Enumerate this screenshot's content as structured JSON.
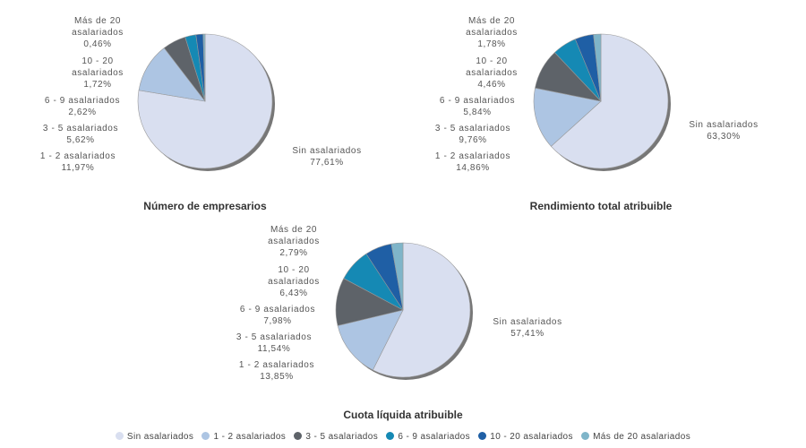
{
  "chart_data": [
    {
      "type": "pie",
      "title": "Número de empresarios",
      "categories": [
        "Sin asalariados",
        "1 - 2 asalariados",
        "3 - 5 asalariados",
        "6 - 9 asalariados",
        "10 - 20 asalariados",
        "Más de 20 asalariados"
      ],
      "values": [
        77.61,
        11.97,
        5.62,
        2.62,
        1.72,
        0.46
      ],
      "labels": [
        "77,61%",
        "11,97%",
        "5,62%",
        "2,62%",
        "1,72%",
        "0,46%"
      ]
    },
    {
      "type": "pie",
      "title": "Rendimiento total atribuible",
      "categories": [
        "Sin asalariados",
        "1 - 2 asalariados",
        "3 - 5 asalariados",
        "6 - 9 asalariados",
        "10 - 20 asalariados",
        "Más de 20 asalariados"
      ],
      "values": [
        63.3,
        14.86,
        9.76,
        5.84,
        4.46,
        1.78
      ],
      "labels": [
        "63,30%",
        "14,86%",
        "9,76%",
        "5,84%",
        "4,46%",
        "1,78%"
      ]
    },
    {
      "type": "pie",
      "title": "Cuota líquida atribuible",
      "categories": [
        "Sin asalariados",
        "1 - 2 asalariados",
        "3 - 5 asalariados",
        "6 - 9 asalariados",
        "10 - 20 asalariados",
        "Más de 20 asalariados"
      ],
      "values": [
        57.41,
        13.85,
        11.54,
        7.98,
        6.43,
        2.79
      ],
      "labels": [
        "57,41%",
        "13,85%",
        "11,54%",
        "7,98%",
        "6,43%",
        "2,79%"
      ]
    }
  ],
  "legend": {
    "position": "bottom",
    "items": [
      "Sin asalariados",
      "1 - 2 asalariados",
      "3 - 5 asalariados",
      "6 - 9 asalariados",
      "10 - 20 asalariados",
      "Más de 20 asalariados"
    ]
  },
  "colors": [
    "#d9dff0",
    "#adc5e3",
    "#5e6369",
    "#1589b4",
    "#1f5fa5",
    "#7fb5c9"
  ]
}
